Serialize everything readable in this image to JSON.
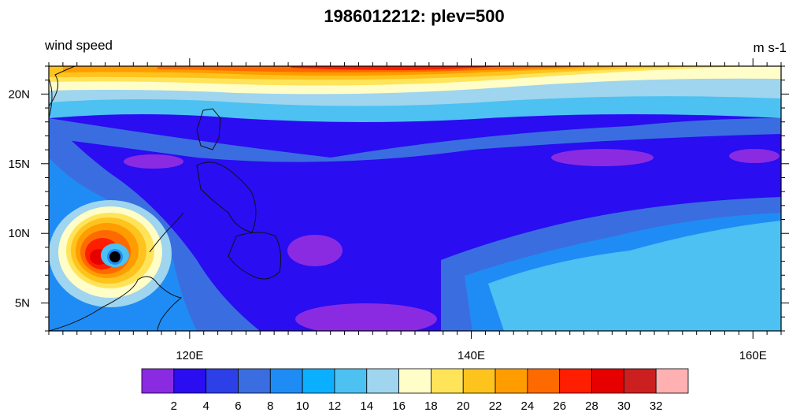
{
  "chart_data": {
    "type": "heatmap",
    "title": "1986012212: plev=500",
    "left_label": "wind speed",
    "right_label": "m s-1",
    "lon_range": [
      110,
      162
    ],
    "lat_range": [
      3,
      22
    ],
    "x_ticks": [
      {
        "value": 120,
        "label": "120E"
      },
      {
        "value": 140,
        "label": "140E"
      },
      {
        "value": 160,
        "label": "160E"
      }
    ],
    "y_ticks": [
      {
        "value": 5,
        "label": "5N"
      },
      {
        "value": 10,
        "label": "10N"
      },
      {
        "value": 15,
        "label": "15N"
      },
      {
        "value": 20,
        "label": "20N"
      }
    ],
    "colorbar": {
      "levels": [
        2,
        4,
        6,
        8,
        10,
        12,
        14,
        16,
        18,
        20,
        22,
        24,
        26,
        28,
        30,
        32
      ],
      "labels": [
        "2",
        "4",
        "6",
        "8",
        "10",
        "12",
        "14",
        "16",
        "18",
        "20",
        "22",
        "24",
        "26",
        "28",
        "30",
        "32"
      ],
      "colors": [
        "#8a2be2",
        "#2a0df0",
        "#2d3fe6",
        "#3a6ee0",
        "#1f8cf5",
        "#0ab0ff",
        "#4cc1f2",
        "#9fd5ee",
        "#fffdc8",
        "#ffe45a",
        "#ffc31e",
        "#ff9d00",
        "#ff6a00",
        "#ff1e00",
        "#e60000",
        "#cc2020",
        "#ffb0b0"
      ]
    }
  }
}
